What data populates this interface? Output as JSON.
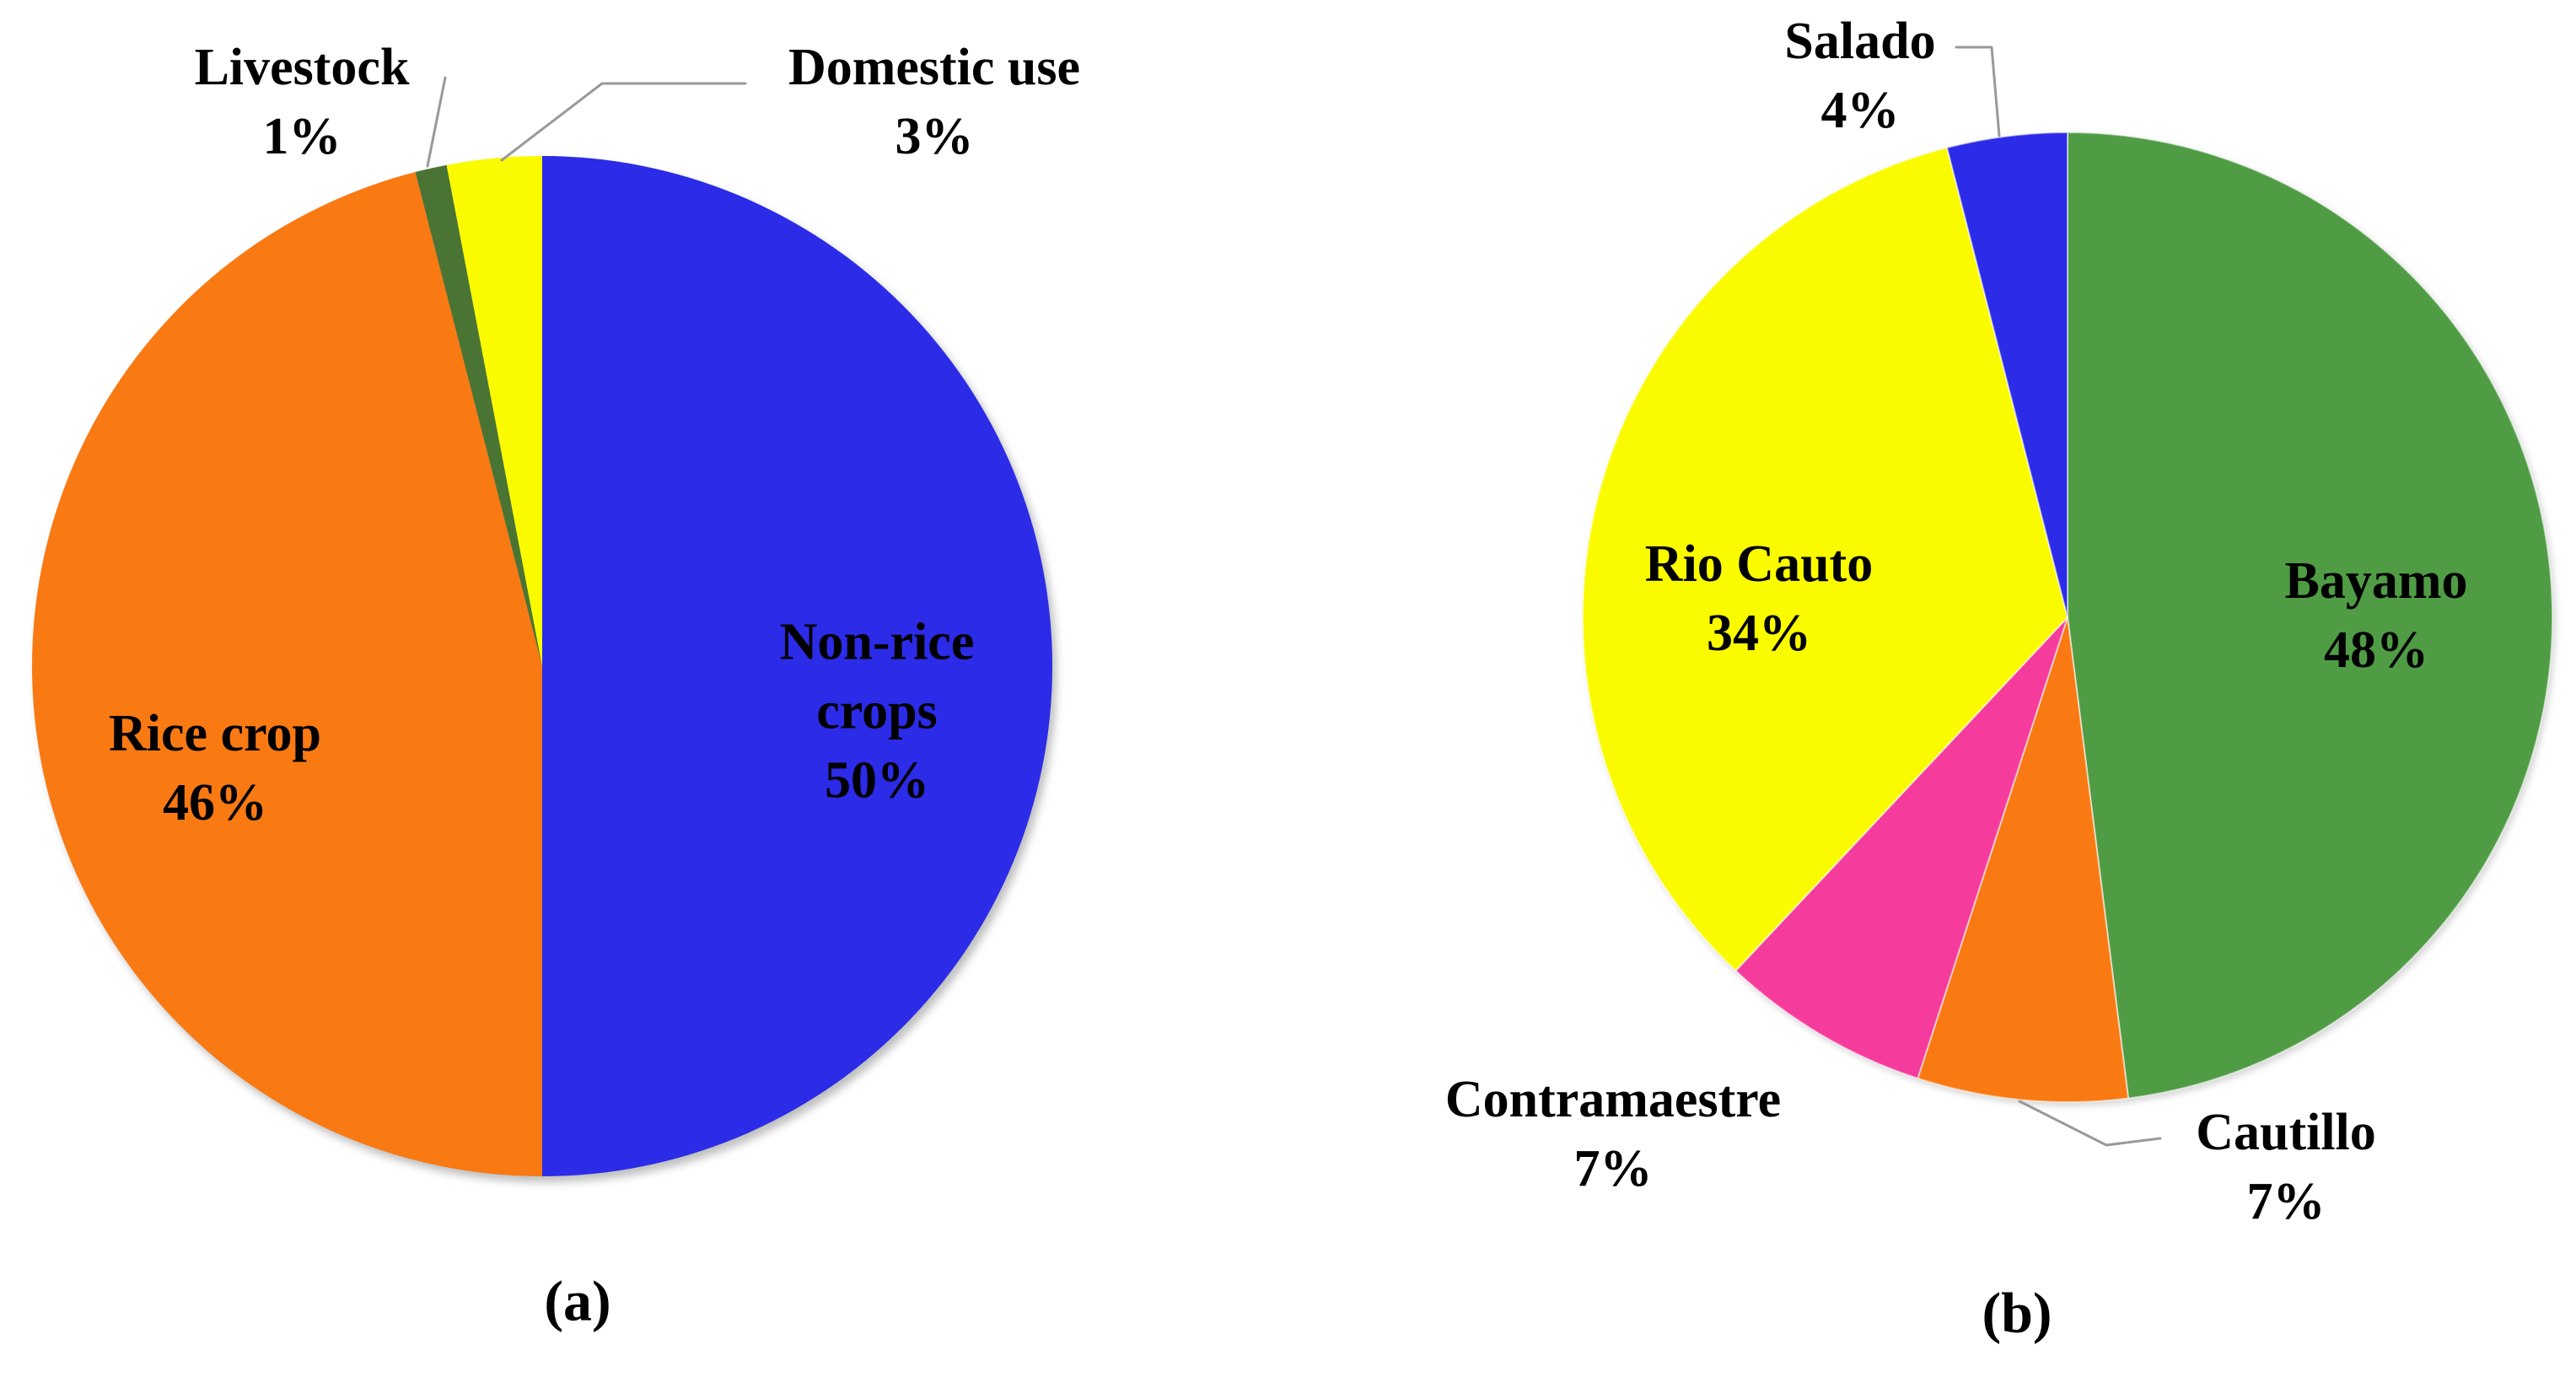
{
  "page": {
    "background": "#FFFFFF"
  },
  "figure": {
    "caption_a": "(a)",
    "caption_b": "(b)"
  },
  "colors": {
    "blue": "#2B2BE8",
    "orange": "#F97913",
    "olive_green": "#4A7433",
    "yellow": "#FBFB00",
    "green": "#4F9C45",
    "pink": "#F53C9C",
    "leader_line": "#999999",
    "text": "#000000"
  },
  "chart_data": [
    {
      "type": "pie",
      "id": "a",
      "caption": "(a)",
      "start_angle_deg": 0,
      "direction": "clockwise",
      "legend_position": "none",
      "slices": [
        {
          "label": "Non-rice crops",
          "pct": 50,
          "pct_label": "50%",
          "color": "#2B2BE8"
        },
        {
          "label": "Rice crop",
          "pct": 46,
          "pct_label": "46%",
          "color": "#F97913"
        },
        {
          "label": "Livestock",
          "pct": 1,
          "pct_label": "1%",
          "color": "#4A7433"
        },
        {
          "label": "Domestic use",
          "pct": 3,
          "pct_label": "3%",
          "color": "#FBFB00"
        }
      ]
    },
    {
      "type": "pie",
      "id": "b",
      "caption": "(b)",
      "start_angle_deg": 0,
      "direction": "clockwise",
      "legend_position": "none",
      "slices": [
        {
          "label": "Bayamo",
          "pct": 48,
          "pct_label": "48%",
          "color": "#4F9C45"
        },
        {
          "label": "Cautillo",
          "pct": 7,
          "pct_label": "7%",
          "color": "#F97913"
        },
        {
          "label": "Contramaestre",
          "pct": 7,
          "pct_label": "7%",
          "color": "#F53C9C"
        },
        {
          "label": "Rio Cauto",
          "pct": 34,
          "pct_label": "34%",
          "color": "#FBFB00"
        },
        {
          "label": "Salado",
          "pct": 4,
          "pct_label": "4%",
          "color": "#2B2BE8"
        }
      ]
    }
  ]
}
